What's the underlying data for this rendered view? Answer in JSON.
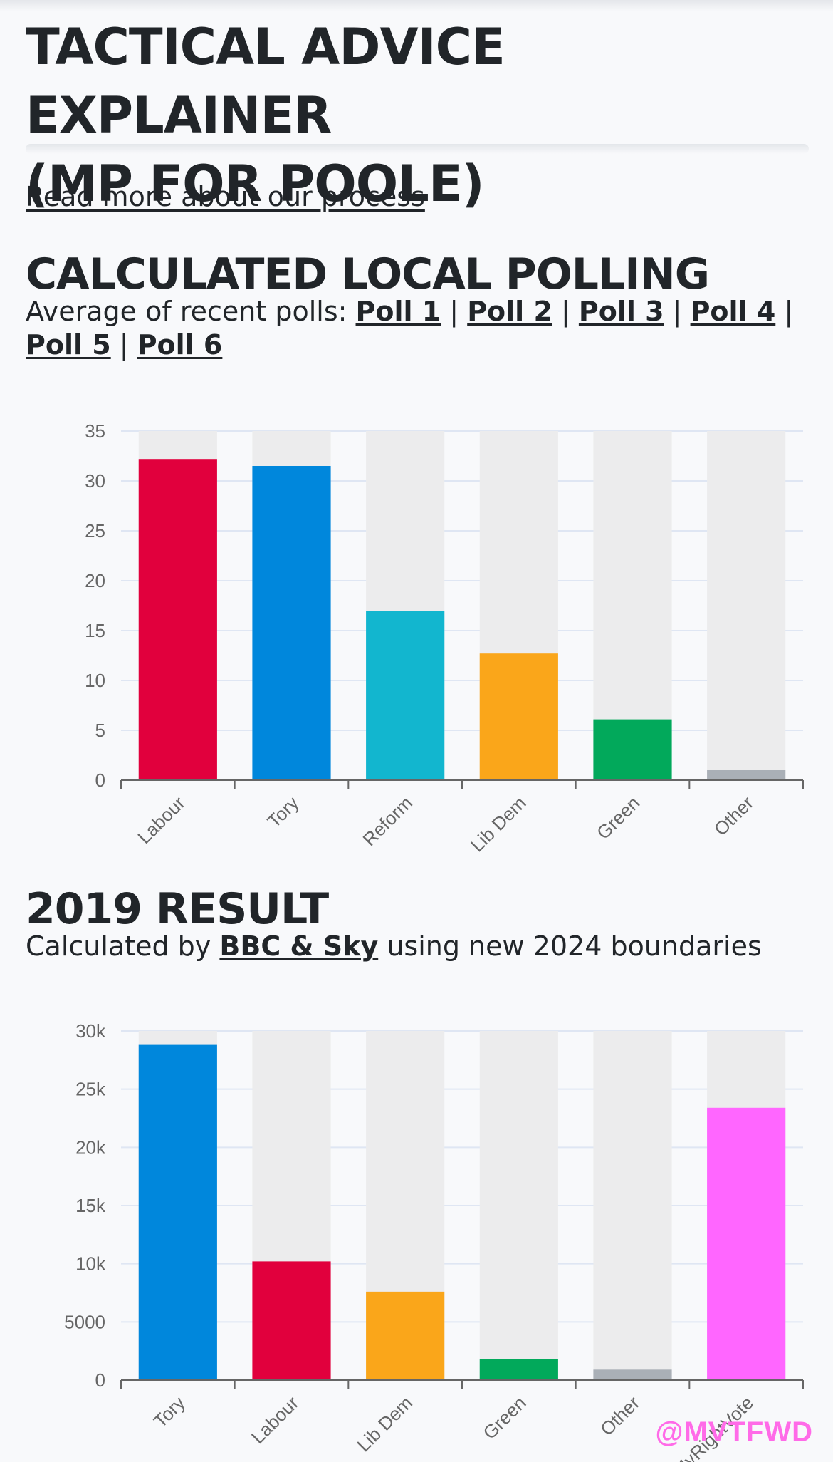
{
  "header": {
    "title_line1": "TACTICAL ADVICE EXPLAINER",
    "title_line2": "(MP FOR POOLE)",
    "read_more": "Read more about our process"
  },
  "polling": {
    "title": "CALCULATED LOCAL POLLING",
    "intro": "Average of recent polls:",
    "separator": "|",
    "polls": [
      "Poll 1",
      "Poll 2",
      "Poll 3",
      "Poll 4",
      "Poll 5",
      "Poll 6"
    ]
  },
  "result": {
    "title": "2019 RESULT",
    "text_before": "Calculated by",
    "link": "BBC & Sky",
    "text_after": "using new 2024 boundaries"
  },
  "watermark": {
    "handle": "@MVTFWD",
    "ghost": "MyRightVote"
  },
  "chart_data": [
    {
      "type": "bar",
      "categories": [
        "Labour",
        "Tory",
        "Reform",
        "Lib Dem",
        "Green",
        "Other"
      ],
      "values": [
        32.2,
        31.5,
        17,
        12.7,
        6.1,
        1
      ],
      "colors": [
        "#e1003d",
        "#0087dc",
        "#12b6cf",
        "#faa61a",
        "#02a95b",
        "#aab0b7"
      ],
      "ylim": [
        0,
        35
      ],
      "yticks": [
        0,
        5,
        10,
        15,
        20,
        25,
        30,
        35
      ],
      "ytick_labels": [
        "0",
        "5",
        "10",
        "15",
        "20",
        "25",
        "30",
        "35"
      ],
      "grid": true,
      "background_bars": true
    },
    {
      "type": "bar",
      "categories": [
        "Tory",
        "Labour",
        "Lib Dem",
        "Green",
        "Other",
        "MyRightVote"
      ],
      "values": [
        28800,
        10200,
        7600,
        1800,
        900,
        23400
      ],
      "colors": [
        "#0087dc",
        "#e1003d",
        "#faa61a",
        "#02a95b",
        "#aab0b7",
        "#ff66ff"
      ],
      "ylim": [
        0,
        30000
      ],
      "yticks": [
        0,
        5000,
        10000,
        15000,
        20000,
        25000,
        30000
      ],
      "ytick_labels": [
        "0",
        "5000",
        "10k",
        "15k",
        "20k",
        "25k",
        "30k"
      ],
      "grid": true,
      "background_bars": true
    }
  ]
}
